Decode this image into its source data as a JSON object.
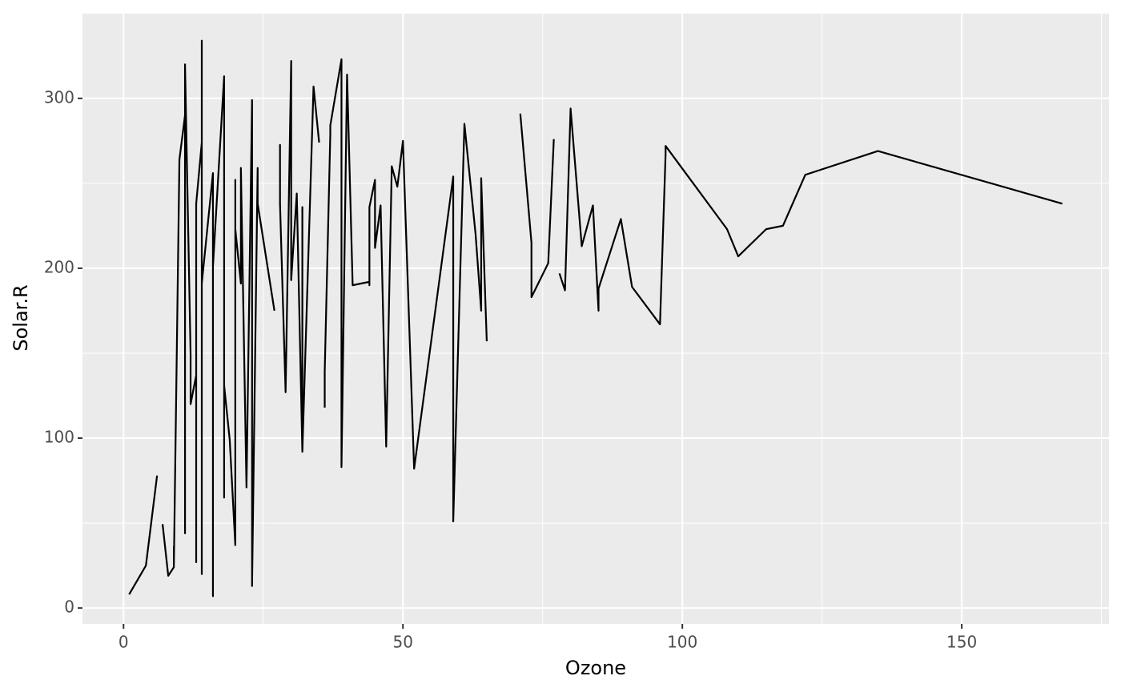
{
  "chart_data": {
    "type": "line",
    "x_label": "Ozone",
    "y_label": "Solar.R",
    "x": [
      1,
      4,
      6,
      7,
      7,
      7,
      8,
      9,
      9,
      9,
      10,
      11,
      11,
      11,
      12,
      12,
      13,
      13,
      13,
      13,
      14,
      14,
      14,
      14,
      16,
      16,
      16,
      16,
      18,
      18,
      18,
      18,
      19,
      20,
      20,
      20,
      20,
      21,
      21,
      21,
      21,
      22,
      23,
      23,
      23,
      23,
      23,
      23,
      24,
      24,
      27,
      28,
      28,
      28,
      29,
      30,
      30,
      31,
      32,
      32,
      32,
      34,
      35,
      35,
      36,
      36,
      37,
      37,
      39,
      39,
      40,
      41,
      44,
      44,
      44,
      45,
      45,
      46,
      47,
      48,
      49,
      50,
      52,
      59,
      59,
      61,
      63,
      64,
      64,
      65,
      66,
      71,
      73,
      73,
      76,
      77,
      78,
      78,
      79,
      80,
      82,
      84,
      85,
      85,
      89,
      91,
      96,
      97,
      97,
      108,
      110,
      115,
      118,
      122,
      135,
      168
    ],
    "values": [
      8,
      25,
      78,
      null,
      48,
      49,
      19,
      24,
      36,
      24,
      264,
      290,
      44,
      320,
      149,
      120,
      137,
      112,
      27,
      238,
      274,
      334,
      20,
      191,
      256,
      7,
      77,
      201,
      313,
      65,
      224,
      131,
      99,
      37,
      81,
      252,
      223,
      191,
      259,
      230,
      259,
      71,
      299,
      13,
      148,
      115,
      220,
      14,
      259,
      238,
      175,
      null,
      273,
      238,
      127,
      322,
      193,
      244,
      92,
      236,
      92,
      307,
      274,
      null,
      118,
      139,
      279,
      284,
      323,
      83,
      314,
      190,
      192,
      190,
      236,
      252,
      212,
      237,
      95,
      260,
      248,
      275,
      82,
      254,
      51,
      285,
      220,
      175,
      253,
      157,
      null,
      291,
      215,
      183,
      203,
      276,
      null,
      197,
      187,
      294,
      213,
      237,
      175,
      188,
      229,
      189,
      167,
      267,
      272,
      223,
      207,
      223,
      225,
      255,
      269,
      238
    ],
    "color": "#000000",
    "xlim": [
      -7.35,
      176.35
    ],
    "ylim": [
      -9.35,
      350.35
    ],
    "xticks": [
      0,
      50,
      100,
      150
    ],
    "yticks": [
      0,
      100,
      200,
      300
    ],
    "grid": true
  }
}
